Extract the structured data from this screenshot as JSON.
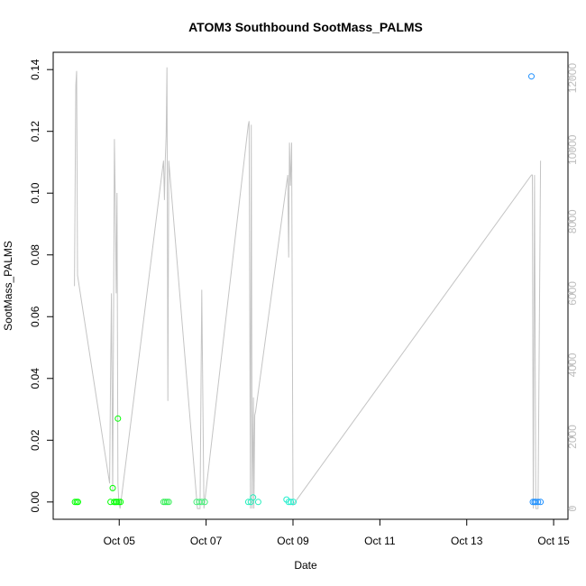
{
  "chart_data": {
    "type": "scatter",
    "title": "ATOM3 Southbound SootMass_PALMS",
    "xlabel": "Date",
    "ylabel": "SootMass_PALMS",
    "x_ticks": [
      "Oct 05",
      "Oct 07",
      "Oct 09",
      "Oct 11",
      "Oct 13",
      "Oct 15"
    ],
    "x_tick_values": [
      5,
      7,
      9,
      11,
      13,
      15
    ],
    "xlim": [
      3.48,
      15.33
    ],
    "ylim": [
      -0.0056,
      0.1456
    ],
    "y_ticks": [
      "0.00",
      "0.02",
      "0.04",
      "0.06",
      "0.08",
      "0.10",
      "0.12",
      "0.14"
    ],
    "y_tick_values": [
      0,
      0.02,
      0.04,
      0.06,
      0.08,
      0.1,
      0.12,
      0.14
    ],
    "y2lim": [
      -300,
      12720
    ],
    "y2_ticks": [
      "0",
      "2000",
      "4000",
      "6000",
      "8000",
      "10000",
      "12000"
    ],
    "y2_tick_values": [
      0,
      2000,
      4000,
      6000,
      8000,
      10000,
      12000
    ],
    "grid": false,
    "colors": {
      "line": "#c4c4c4",
      "axis": "#000000",
      "right_axis": "#bdbdbd"
    },
    "series": [
      {
        "color": "#00ff00",
        "points": [
          [
            3.98,
            0
          ],
          [
            4.02,
            0
          ],
          [
            4.05,
            0
          ],
          [
            4.8,
            0
          ],
          [
            4.85,
            0.0045
          ],
          [
            4.88,
            0
          ],
          [
            4.92,
            0
          ],
          [
            4.95,
            0
          ],
          [
            4.97,
            0.027
          ],
          [
            4.99,
            0
          ],
          [
            5.03,
            0
          ]
        ]
      },
      {
        "color": "#33ee55",
        "points": [
          [
            6.02,
            0
          ],
          [
            6.06,
            0
          ],
          [
            6.1,
            0
          ],
          [
            6.14,
            0
          ]
        ]
      },
      {
        "color": "#44ee77",
        "points": [
          [
            6.78,
            0
          ],
          [
            6.84,
            0
          ],
          [
            6.9,
            0
          ],
          [
            6.97,
            0
          ]
        ]
      },
      {
        "color": "#22eebb",
        "points": [
          [
            7.97,
            0
          ],
          [
            8.03,
            0
          ],
          [
            8.08,
            0.0015
          ],
          [
            8.2,
            0
          ]
        ]
      },
      {
        "color": "#22eecc",
        "points": [
          [
            8.85,
            0.0008
          ],
          [
            8.9,
            0
          ],
          [
            8.95,
            0
          ],
          [
            9.01,
            0
          ]
        ]
      },
      {
        "color": "#1e90ff",
        "points": [
          [
            14.49,
            0.1378
          ],
          [
            14.52,
            0
          ],
          [
            14.56,
            0
          ],
          [
            14.59,
            0
          ],
          [
            14.64,
            0
          ],
          [
            14.7,
            0
          ]
        ]
      }
    ],
    "altitude": {
      "color": "#c4c4c4",
      "points": [
        [
          3.97,
          6200
        ],
        [
          4.0,
          11800
        ],
        [
          4.02,
          12200
        ],
        [
          4.04,
          6500
        ],
        [
          4.78,
          700
        ],
        [
          4.8,
          3500
        ],
        [
          4.82,
          6000
        ],
        [
          4.85,
          500
        ],
        [
          4.87,
          5500
        ],
        [
          4.89,
          10300
        ],
        [
          4.91,
          8500
        ],
        [
          4.93,
          6000
        ],
        [
          4.95,
          8800
        ],
        [
          4.97,
          700
        ],
        [
          4.99,
          200
        ],
        [
          5.02,
          0
        ],
        [
          6.02,
          9700
        ],
        [
          6.04,
          8600
        ],
        [
          6.06,
          9700
        ],
        [
          6.08,
          10400
        ],
        [
          6.1,
          12300
        ],
        [
          6.12,
          3000
        ],
        [
          6.14,
          9700
        ],
        [
          6.8,
          0
        ],
        [
          6.86,
          0
        ],
        [
          6.9,
          6100
        ],
        [
          6.95,
          0
        ],
        [
          7.97,
          10700
        ],
        [
          7.99,
          10800
        ],
        [
          8.02,
          0
        ],
        [
          8.04,
          10700
        ],
        [
          8.06,
          0
        ],
        [
          8.09,
          3100
        ],
        [
          8.1,
          0
        ],
        [
          8.12,
          2600
        ],
        [
          8.14,
          2700
        ],
        [
          8.88,
          9300
        ],
        [
          8.9,
          7000
        ],
        [
          8.92,
          10200
        ],
        [
          8.94,
          9000
        ],
        [
          8.97,
          10200
        ],
        [
          9.0,
          100
        ],
        [
          14.49,
          9300
        ],
        [
          14.51,
          9300
        ],
        [
          14.53,
          0
        ],
        [
          14.56,
          9300
        ],
        [
          14.59,
          0
        ],
        [
          14.64,
          0
        ],
        [
          14.7,
          9700
        ]
      ]
    }
  }
}
